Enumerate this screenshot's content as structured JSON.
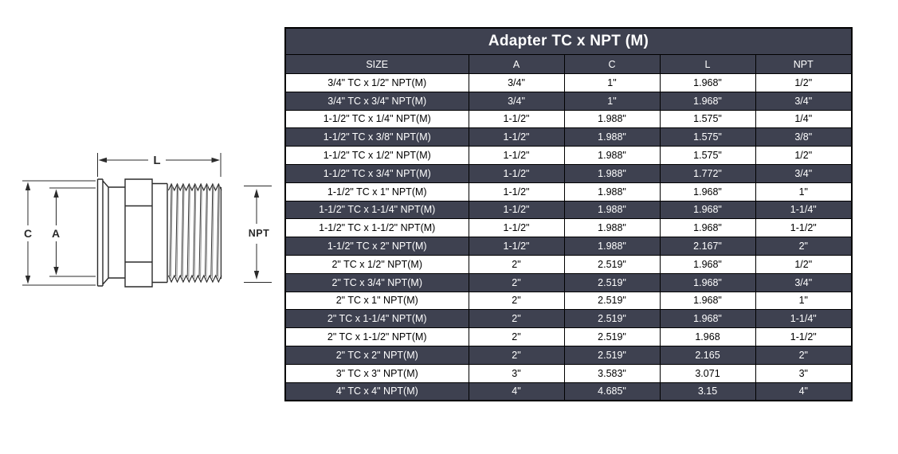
{
  "colors": {
    "dark_row_bg": "#3e4150",
    "light_row_bg": "#ffffff",
    "border": "#000000",
    "dark_row_text": "#ffffff",
    "light_row_text": "#000000",
    "drawing_line": "#2b2b2b"
  },
  "diagram": {
    "labels": {
      "length": "L",
      "clamp": "C",
      "tube": "A",
      "thread": "NPT"
    }
  },
  "table": {
    "title": "Adapter TC x NPT (M)",
    "columns": [
      "SIZE",
      "A",
      "C",
      "L",
      "NPT"
    ],
    "rows": [
      [
        "3/4\" TC x 1/2\" NPT(M)",
        "3/4\"",
        "1\"",
        "1.968\"",
        "1/2\""
      ],
      [
        "3/4\" TC x 3/4\" NPT(M)",
        "3/4\"",
        "1\"",
        "1.968\"",
        "3/4\""
      ],
      [
        "1-1/2\" TC x 1/4\" NPT(M)",
        "1-1/2\"",
        "1.988\"",
        "1.575\"",
        "1/4\""
      ],
      [
        "1-1/2\" TC x 3/8\" NPT(M)",
        "1-1/2\"",
        "1.988\"",
        "1.575\"",
        "3/8\""
      ],
      [
        "1-1/2\" TC x 1/2\" NPT(M)",
        "1-1/2\"",
        "1.988\"",
        "1.575\"",
        "1/2\""
      ],
      [
        "1-1/2\" TC x 3/4\" NPT(M)",
        "1-1/2\"",
        "1.988\"",
        "1.772\"",
        "3/4\""
      ],
      [
        "1-1/2\" TC x 1\" NPT(M)",
        "1-1/2\"",
        "1.988\"",
        "1.968\"",
        "1\""
      ],
      [
        "1-1/2\" TC x 1-1/4\" NPT(M)",
        "1-1/2\"",
        "1.988\"",
        "1.968\"",
        "1-1/4\""
      ],
      [
        "1-1/2\" TC x 1-1/2\" NPT(M)",
        "1-1/2\"",
        "1.988\"",
        "1.968\"",
        "1-1/2\""
      ],
      [
        "1-1/2\" TC x 2\" NPT(M)",
        "1-1/2\"",
        "1.988\"",
        "2.167\"",
        "2\""
      ],
      [
        "2\" TC x 1/2\" NPT(M)",
        "2\"",
        "2.519\"",
        "1.968\"",
        "1/2\""
      ],
      [
        "2\" TC x 3/4\" NPT(M)",
        "2\"",
        "2.519\"",
        "1.968\"",
        "3/4\""
      ],
      [
        "2\" TC x 1\" NPT(M)",
        "2\"",
        "2.519\"",
        "1.968\"",
        "1\""
      ],
      [
        "2\" TC x 1-1/4\" NPT(M)",
        "2\"",
        "2.519\"",
        "1.968\"",
        "1-1/4\""
      ],
      [
        "2\" TC x 1-1/2\" NPT(M)",
        "2\"",
        "2.519\"",
        "1.968",
        "1-1/2\""
      ],
      [
        "2\" TC x 2\" NPT(M)",
        "2\"",
        "2.519\"",
        "2.165",
        "2\""
      ],
      [
        "3\" TC x 3\" NPT(M)",
        "3\"",
        "3.583\"",
        "3.071",
        "3\""
      ],
      [
        "4\" TC x 4\" NPT(M)",
        "4\"",
        "4.685\"",
        "3.15",
        "4\""
      ]
    ]
  }
}
